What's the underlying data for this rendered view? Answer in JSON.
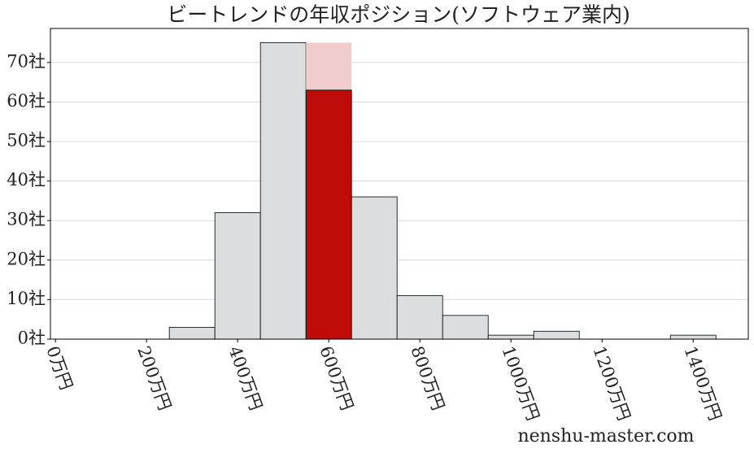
{
  "chart_data": {
    "type": "histogram",
    "title": "ビートレンドの年収ポジション(ソフトウェア業内)",
    "watermark": "nenshu-master.com",
    "bins": [
      250,
      350,
      450,
      550,
      650,
      750,
      850,
      950,
      1050,
      1150,
      1250,
      1350,
      1450
    ],
    "counts": [
      3,
      32,
      75,
      75,
      36,
      11,
      6,
      1,
      2,
      0,
      0,
      1
    ],
    "color": "#dcdddf",
    "highlight_bin": 3,
    "highlight_color": "#f0cccc",
    "highlight_value": 63,
    "highlight_value_color": "#c00b0b",
    "xlim": [
      -11,
      1521
    ],
    "ylim": [
      0,
      78.6
    ],
    "xticks": [
      {
        "value": 0,
        "label": "0万円"
      },
      {
        "value": 200,
        "label": "200万円"
      },
      {
        "value": 400,
        "label": "400万円"
      },
      {
        "value": 600,
        "label": "600万円"
      },
      {
        "value": 800,
        "label": "800万円"
      },
      {
        "value": 1000,
        "label": "1000万円"
      },
      {
        "value": 1200,
        "label": "1200万円"
      },
      {
        "value": 1400,
        "label": "1400万円"
      }
    ],
    "yticks": [
      {
        "value": 0,
        "label": "0社"
      },
      {
        "value": 10,
        "label": "10社"
      },
      {
        "value": 20,
        "label": "20社"
      },
      {
        "value": 30,
        "label": "30社"
      },
      {
        "value": 40,
        "label": "40社"
      },
      {
        "value": 50,
        "label": "50社"
      },
      {
        "value": 60,
        "label": "60社"
      },
      {
        "value": 70,
        "label": "70社"
      }
    ],
    "grid": true
  }
}
